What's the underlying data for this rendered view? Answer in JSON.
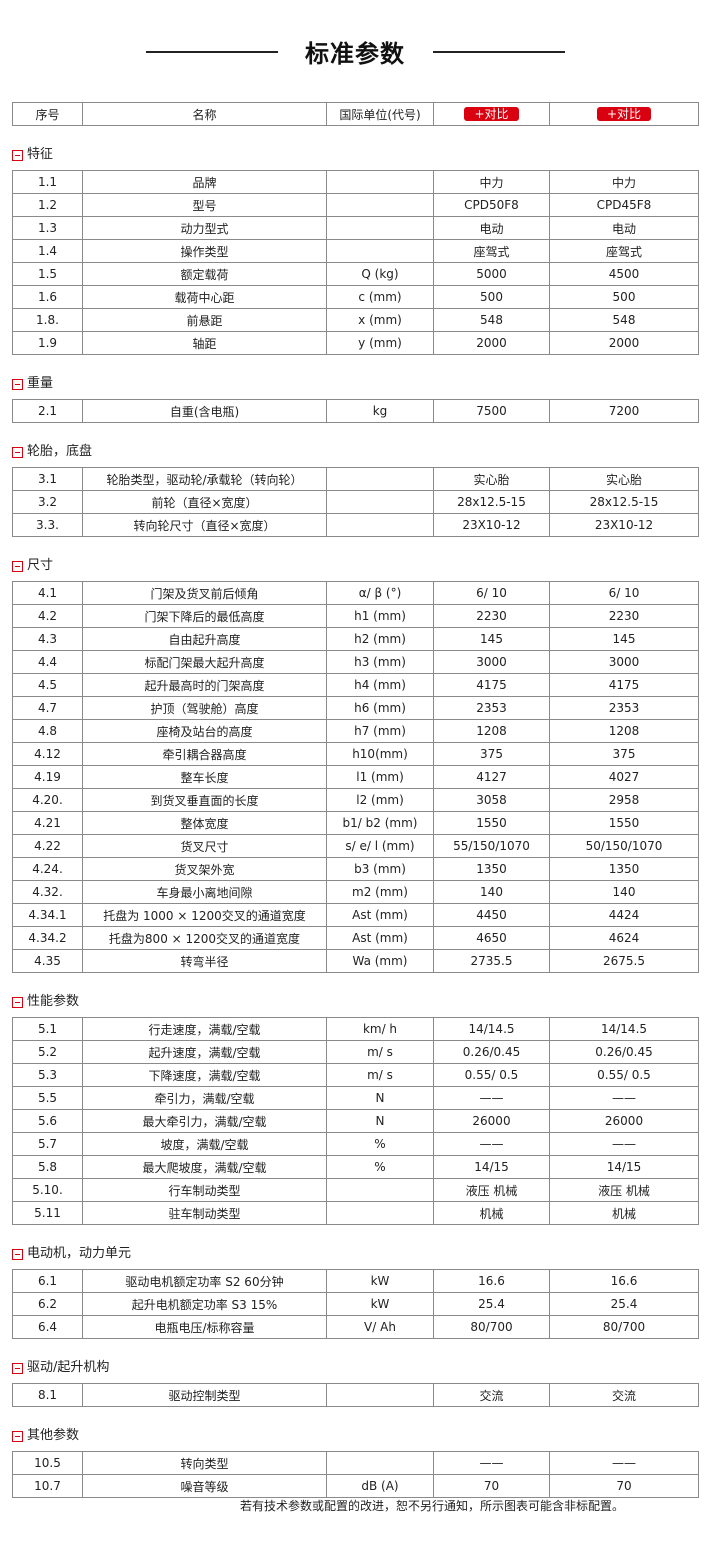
{
  "title": "标准参数",
  "accent_color": "#d9000f",
  "header": {
    "no": "序号",
    "name": "名称",
    "unit": "国际单位(代号)",
    "compare_1": "+对比",
    "compare_2": "+对比"
  },
  "sections": [
    {
      "title": "特征",
      "rows": [
        [
          "1.1",
          "品牌",
          "",
          "中力",
          "中力"
        ],
        [
          "1.2",
          "型号",
          "",
          "CPD50F8",
          "CPD45F8"
        ],
        [
          "1.3",
          "动力型式",
          "",
          "电动",
          "电动"
        ],
        [
          "1.4",
          "操作类型",
          "",
          "座驾式",
          "座驾式"
        ],
        [
          "1.5",
          "额定载荷",
          "Q (kg)",
          "5000",
          "4500"
        ],
        [
          "1.6",
          "载荷中心距",
          "c (mm)",
          "500",
          "500"
        ],
        [
          "1.8.",
          "前悬距",
          "x (mm)",
          "548",
          "548"
        ],
        [
          "1.9",
          "轴距",
          "y (mm)",
          "2000",
          "2000"
        ]
      ]
    },
    {
      "title": "重量",
      "rows": [
        [
          "2.1",
          "自重(含电瓶)",
          "kg",
          "7500",
          "7200"
        ]
      ]
    },
    {
      "title": "轮胎，底盘",
      "rows": [
        [
          "3.1",
          "轮胎类型，驱动轮/承载轮（转向轮）",
          "",
          "实心胎",
          "实心胎"
        ],
        [
          "3.2",
          "前轮（直径×宽度）",
          "",
          "28x12.5-15",
          "28x12.5-15"
        ],
        [
          "3.3.",
          "转向轮尺寸（直径×宽度）",
          "",
          "23X10-12",
          "23X10-12"
        ]
      ]
    },
    {
      "title": "尺寸",
      "rows": [
        [
          "4.1",
          "门架及货叉前后倾角",
          "α/ β (°)",
          "6/ 10",
          "6/ 10"
        ],
        [
          "4.2",
          "门架下降后的最低高度",
          "h1 (mm)",
          "2230",
          "2230"
        ],
        [
          "4.3",
          "自由起升高度",
          "h2 (mm)",
          "145",
          "145"
        ],
        [
          "4.4",
          "标配门架最大起升高度",
          "h3 (mm)",
          "3000",
          "3000"
        ],
        [
          "4.5",
          "起升最高时的门架高度",
          "h4 (mm)",
          "4175",
          "4175"
        ],
        [
          "4.7",
          "护顶（驾驶舱）高度",
          "h6 (mm)",
          "2353",
          "2353"
        ],
        [
          "4.8",
          "座椅及站台的高度",
          "h7 (mm)",
          "1208",
          "1208"
        ],
        [
          "4.12",
          "牵引耦合器高度",
          "h10(mm)",
          "375",
          "375"
        ],
        [
          "4.19",
          "整车长度",
          "l1 (mm)",
          "4127",
          "4027"
        ],
        [
          "4.20.",
          "到货叉垂直面的长度",
          "l2 (mm)",
          "3058",
          "2958"
        ],
        [
          "4.21",
          "整体宽度",
          "b1/ b2 (mm)",
          "1550",
          "1550"
        ],
        [
          "4.22",
          "货叉尺寸",
          "s/ e/ l (mm)",
          "55/150/1070",
          "50/150/1070"
        ],
        [
          "4.24.",
          "货叉架外宽",
          "b3 (mm)",
          "1350",
          "1350"
        ],
        [
          "4.32.",
          "车身最小离地间隙",
          "m2 (mm)",
          "140",
          "140"
        ],
        [
          "4.34.1",
          "托盘为 1000 × 1200交叉的通道宽度",
          "Ast (mm)",
          "4450",
          "4424"
        ],
        [
          "4.34.2",
          "托盘为800 × 1200交叉的通道宽度",
          "Ast (mm)",
          "4650",
          "4624"
        ],
        [
          "4.35",
          "转弯半径",
          "Wa (mm)",
          "2735.5",
          "2675.5"
        ]
      ]
    },
    {
      "title": "性能参数",
      "rows": [
        [
          "5.1",
          "行走速度，满载/空载",
          "km/ h",
          "14/14.5",
          "14/14.5"
        ],
        [
          "5.2",
          "起升速度，满载/空载",
          "m/ s",
          "0.26/0.45",
          "0.26/0.45"
        ],
        [
          "5.3",
          "下降速度，满载/空载",
          "m/ s",
          "0.55/ 0.5",
          "0.55/ 0.5"
        ],
        [
          "5.5",
          "牵引力，满载/空载",
          "N",
          "——",
          "——"
        ],
        [
          "5.6",
          "最大牵引力，满载/空载",
          "N",
          "26000",
          "26000"
        ],
        [
          "5.7",
          "坡度，满载/空载",
          "%",
          "——",
          "——"
        ],
        [
          "5.8",
          "最大爬坡度，满载/空载",
          "%",
          "14/15",
          "14/15"
        ],
        [
          "5.10.",
          "行车制动类型",
          "",
          "液压 机械",
          "液压 机械"
        ],
        [
          "5.11",
          "驻车制动类型",
          "",
          "机械",
          "机械"
        ]
      ]
    },
    {
      "title": "电动机，动力单元",
      "rows": [
        [
          "6.1",
          "驱动电机额定功率 S2 60分钟",
          "kW",
          "16.6",
          "16.6"
        ],
        [
          "6.2",
          "起升电机额定功率 S3 15%",
          "kW",
          "25.4",
          "25.4"
        ],
        [
          "6.4",
          "电瓶电压/标称容量",
          "V/ Ah",
          "80/700",
          "80/700"
        ]
      ]
    },
    {
      "title": "驱动/起升机构",
      "rows": [
        [
          "8.1",
          "驱动控制类型",
          "",
          "交流",
          "交流"
        ]
      ]
    },
    {
      "title": "其他参数",
      "rows": [
        [
          "10.5",
          "转向类型",
          "",
          "——",
          "——"
        ],
        [
          "10.7",
          "噪音等级",
          "dB (A)",
          "70",
          "70"
        ]
      ]
    }
  ],
  "footer": "若有技术参数或配置的改进，恕不另行通知，所示图表可能含非标配置。"
}
